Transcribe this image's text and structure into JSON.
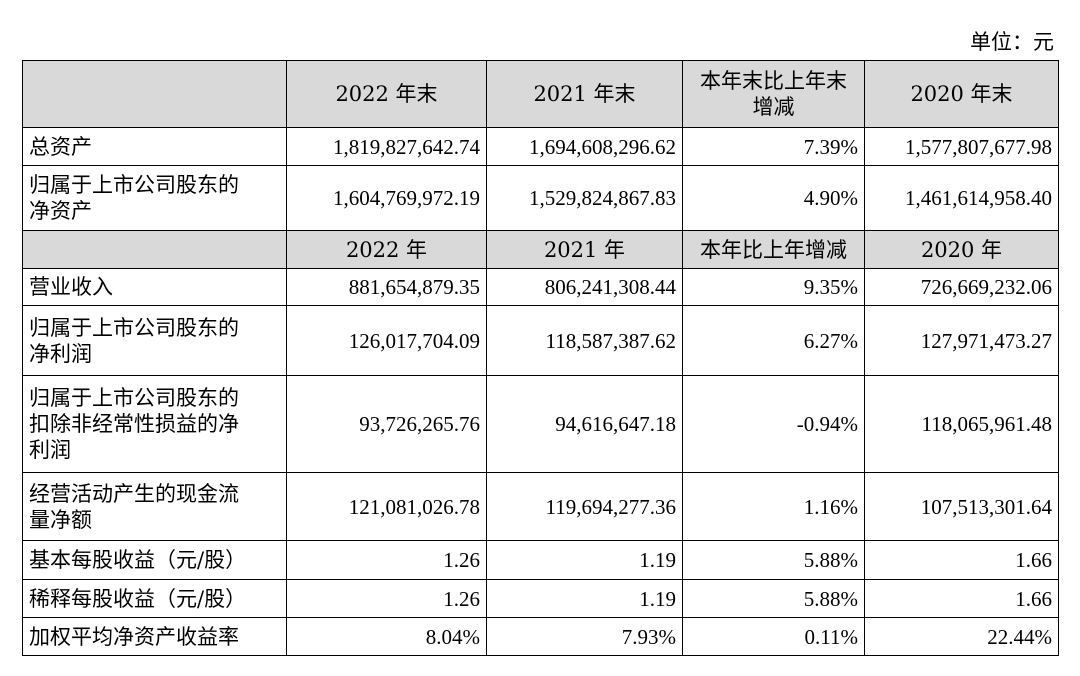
{
  "unit_label": "单位：元",
  "header_balance": [
    "",
    "2022 年末",
    "2021 年末",
    "本年末比上年末增减",
    "2020 年末"
  ],
  "header_balance_lines": {
    "col3_line1": "本年末比上年末",
    "col3_line2": "增减"
  },
  "balance_rows": [
    {
      "label_lines": [
        "总资产"
      ],
      "values": [
        "1,819,827,642.74",
        "1,694,608,296.62",
        "7.39%",
        "1,577,807,677.98"
      ]
    },
    {
      "label_lines": [
        "归属于上市公司股东的",
        "净资产"
      ],
      "values": [
        "1,604,769,972.19",
        "1,529,824,867.83",
        "4.90%",
        "1,461,614,958.40"
      ]
    }
  ],
  "header_income": [
    "",
    "2022 年",
    "2021 年",
    "本年比上年增减",
    "2020 年"
  ],
  "income_rows": [
    {
      "label_lines": [
        "营业收入"
      ],
      "values": [
        "881,654,879.35",
        "806,241,308.44",
        "9.35%",
        "726,669,232.06"
      ]
    },
    {
      "label_lines": [
        "归属于上市公司股东的",
        "净利润"
      ],
      "values": [
        "126,017,704.09",
        "118,587,387.62",
        "6.27%",
        "127,971,473.27"
      ]
    },
    {
      "label_lines": [
        "归属于上市公司股东的",
        "扣除非经常性损益的净",
        "利润"
      ],
      "values": [
        "93,726,265.76",
        "94,616,647.18",
        "-0.94%",
        "118,065,961.48"
      ]
    },
    {
      "label_lines": [
        "经营活动产生的现金流",
        "量净额"
      ],
      "values": [
        "121,081,026.78",
        "119,694,277.36",
        "1.16%",
        "107,513,301.64"
      ]
    },
    {
      "label_lines": [
        "基本每股收益（元/股）"
      ],
      "values": [
        "1.26",
        "1.19",
        "5.88%",
        "1.66"
      ]
    },
    {
      "label_lines": [
        "稀释每股收益（元/股）"
      ],
      "values": [
        "1.26",
        "1.19",
        "5.88%",
        "1.66"
      ]
    },
    {
      "label_lines": [
        "加权平均净资产收益率"
      ],
      "values": [
        "8.04%",
        "7.93%",
        "0.11%",
        "22.44%"
      ]
    }
  ]
}
